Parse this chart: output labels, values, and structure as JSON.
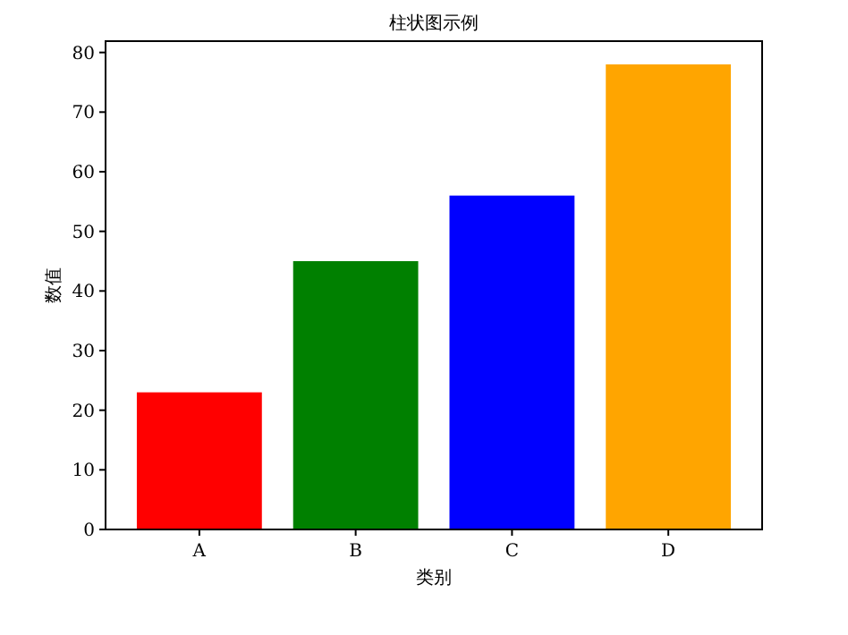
{
  "chart_data": {
    "type": "bar",
    "title": "柱状图示例",
    "xlabel": "类别",
    "ylabel": "数值",
    "categories": [
      "A",
      "B",
      "C",
      "D"
    ],
    "values": [
      23,
      45,
      56,
      78
    ],
    "colors": [
      "#ff0000",
      "#008000",
      "#0000ff",
      "#ffa500"
    ],
    "ylim": [
      0,
      81.9
    ],
    "yticks": [
      0,
      10,
      20,
      30,
      40,
      50,
      60,
      70,
      80
    ]
  }
}
